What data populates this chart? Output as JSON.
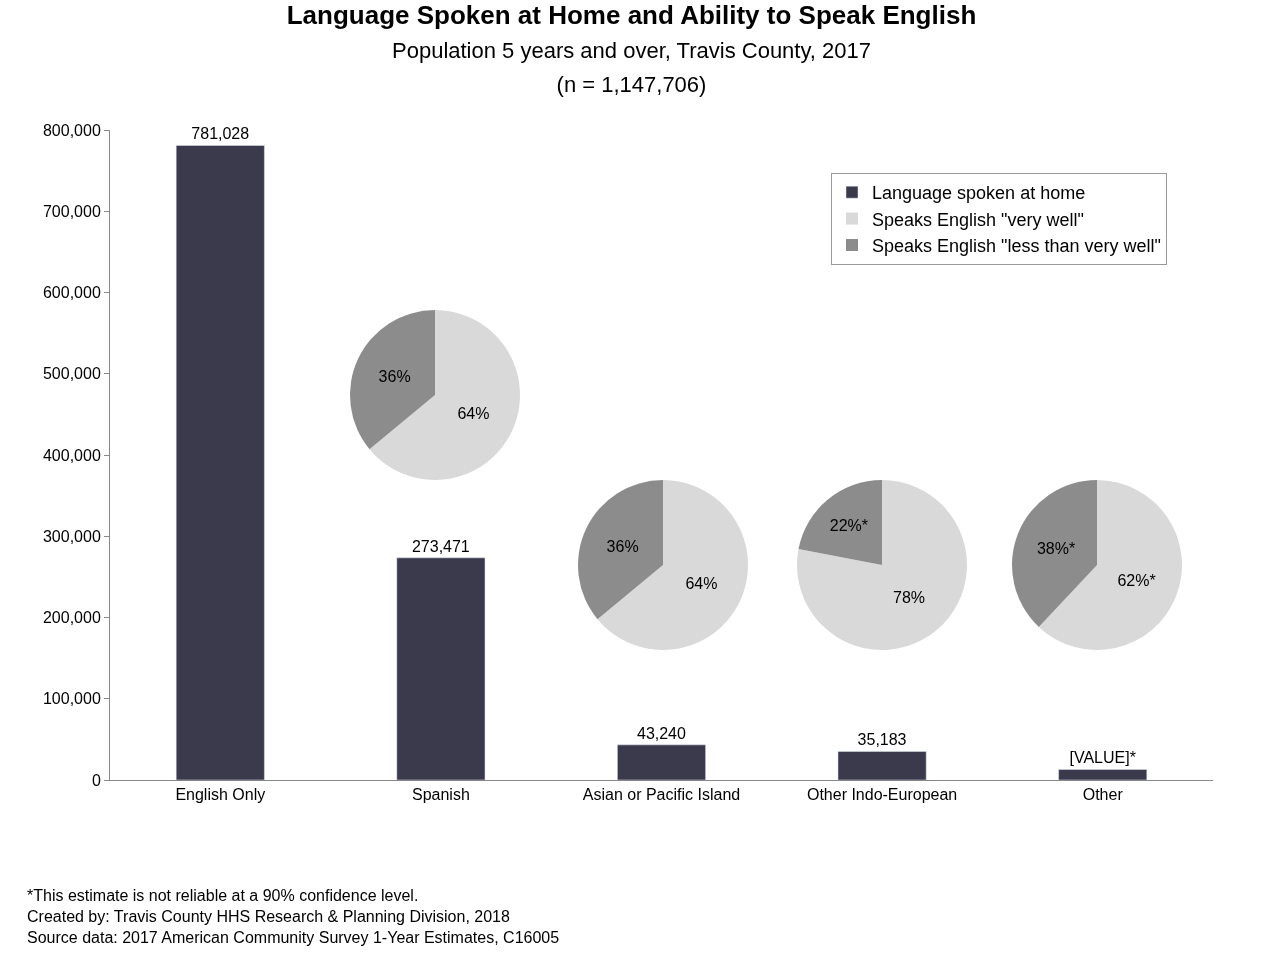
{
  "chart_data": [
    {
      "type": "bar",
      "title": "Language Spoken at Home and Ability to Speak English",
      "subtitle": "Population 5 years and over, Travis County, 2017\n(n = 1,147,706)",
      "categories": [
        "English Only",
        "Spanish",
        "Asian or Pacific Island",
        "Other Indo-European",
        "Other"
      ],
      "series": [
        {
          "name": "Language spoken at home",
          "color": "#3a3a4c",
          "values": [
            781028,
            273471,
            43240,
            35183,
            13000
          ],
          "value_labels": [
            "781,028",
            "273,471",
            "43,240",
            "35,183",
            "[VALUE]*"
          ]
        }
      ],
      "ylim": [
        0,
        800000
      ],
      "yticks": [
        {
          "value": 0,
          "label": "0"
        },
        {
          "value": 100000,
          "label": "100,000"
        },
        {
          "value": 200000,
          "label": "200,000"
        },
        {
          "value": 300000,
          "label": "300,000"
        },
        {
          "value": 400000,
          "label": "400,000"
        },
        {
          "value": 500000,
          "label": "500,000"
        },
        {
          "value": 600000,
          "label": "600,000"
        },
        {
          "value": 700000,
          "label": "700,000"
        },
        {
          "value": 800000,
          "label": "800,000"
        }
      ],
      "legend": "top right",
      "annotations": [
        "*This estimate is not reliable at a 90% confidence level.",
        "Created by: Travis County HHS Research & Planning Division, 2018",
        "Source data: 2017 American Community Survey 1-Year Estimates, C16005"
      ]
    },
    {
      "type": "pie",
      "categories": [
        "Speaks English \"very well\"",
        "Speaks English \"less than very well\""
      ],
      "values": [
        64,
        36
      ],
      "colors": [
        "#d9d9d9",
        "#8c8c8c"
      ],
      "value_labels": [
        "64%",
        "36%"
      ],
      "legend": "top right"
    },
    {
      "type": "pie",
      "categories": [
        null,
        null
      ],
      "values": [
        64,
        36
      ],
      "colors": [
        "#d9d9d9",
        "#8c8c8c"
      ],
      "value_labels": [
        "64%",
        "36%"
      ]
    },
    {
      "type": "pie",
      "categories": [
        null,
        null
      ],
      "values": [
        78,
        22
      ],
      "colors": [
        "#d9d9d9",
        "#8c8c8c"
      ],
      "value_labels": [
        "78%",
        "22%*"
      ]
    },
    {
      "type": "pie",
      "categories": [
        null,
        null
      ],
      "values": [
        62,
        38
      ],
      "colors": [
        "#d9d9d9",
        "#8c8c8c"
      ],
      "value_labels": [
        "62%*",
        "38%*"
      ]
    }
  ]
}
